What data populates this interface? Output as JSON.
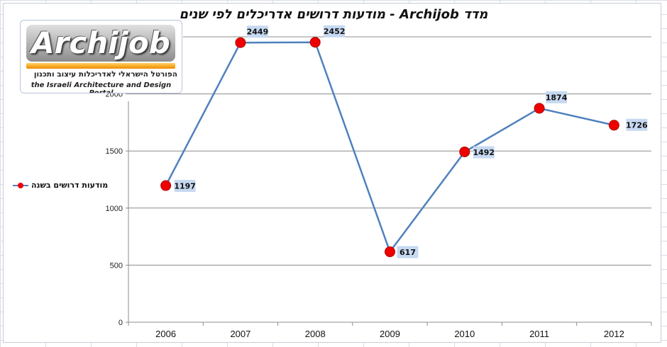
{
  "logo": {
    "wordmark": "Archijob",
    "hebrew_tagline": "הפורטל הישראלי לאדריכלות עיצוב ותכנון",
    "english_tagline": "the Israeli Architecture and Design Portal"
  },
  "chart_data": {
    "type": "line",
    "title": "מדד Archijob - מודעות דרושים אדריכלים לפי שנים",
    "categories": [
      "2006",
      "2007",
      "2008",
      "2009",
      "2010",
      "2011",
      "2012"
    ],
    "series": [
      {
        "name": "מודעות דרושים בשנה",
        "values": [
          1197,
          2449,
          2452,
          617,
          1492,
          1874,
          1726
        ]
      }
    ],
    "ylim": [
      0,
      2500
    ],
    "yticks": [
      0,
      500,
      1000,
      1500,
      2000
    ],
    "xlabel": "",
    "ylabel": "",
    "grid": true,
    "legend_position": "left",
    "colors": {
      "line": "#4f81bd",
      "marker": "#ee0000",
      "label_bg": "#c6d9f1"
    }
  }
}
